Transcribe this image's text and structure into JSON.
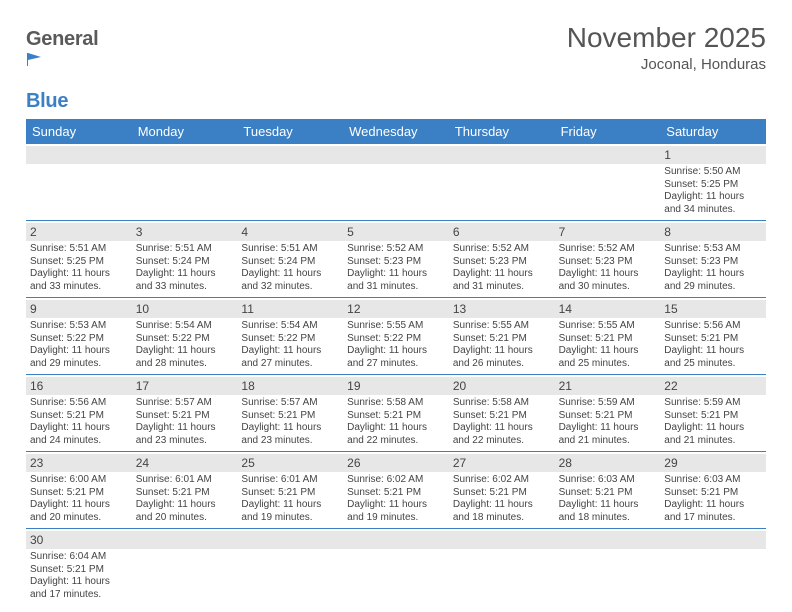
{
  "logo": {
    "textGray": "General",
    "textBlue": "Blue"
  },
  "title": "November 2025",
  "subtitle": "Joconal, Honduras",
  "headerColor": "#3b7fc4",
  "daynumBg": "#e7e7e7",
  "dow": [
    "Sunday",
    "Monday",
    "Tuesday",
    "Wednesday",
    "Thursday",
    "Friday",
    "Saturday"
  ],
  "weeks": [
    [
      {
        "n": "",
        "l": []
      },
      {
        "n": "",
        "l": []
      },
      {
        "n": "",
        "l": []
      },
      {
        "n": "",
        "l": []
      },
      {
        "n": "",
        "l": []
      },
      {
        "n": "",
        "l": []
      },
      {
        "n": "1",
        "l": [
          "Sunrise: 5:50 AM",
          "Sunset: 5:25 PM",
          "Daylight: 11 hours",
          "and 34 minutes."
        ]
      }
    ],
    [
      {
        "n": "2",
        "l": [
          "Sunrise: 5:51 AM",
          "Sunset: 5:25 PM",
          "Daylight: 11 hours",
          "and 33 minutes."
        ]
      },
      {
        "n": "3",
        "l": [
          "Sunrise: 5:51 AM",
          "Sunset: 5:24 PM",
          "Daylight: 11 hours",
          "and 33 minutes."
        ]
      },
      {
        "n": "4",
        "l": [
          "Sunrise: 5:51 AM",
          "Sunset: 5:24 PM",
          "Daylight: 11 hours",
          "and 32 minutes."
        ]
      },
      {
        "n": "5",
        "l": [
          "Sunrise: 5:52 AM",
          "Sunset: 5:23 PM",
          "Daylight: 11 hours",
          "and 31 minutes."
        ]
      },
      {
        "n": "6",
        "l": [
          "Sunrise: 5:52 AM",
          "Sunset: 5:23 PM",
          "Daylight: 11 hours",
          "and 31 minutes."
        ]
      },
      {
        "n": "7",
        "l": [
          "Sunrise: 5:52 AM",
          "Sunset: 5:23 PM",
          "Daylight: 11 hours",
          "and 30 minutes."
        ]
      },
      {
        "n": "8",
        "l": [
          "Sunrise: 5:53 AM",
          "Sunset: 5:23 PM",
          "Daylight: 11 hours",
          "and 29 minutes."
        ]
      }
    ],
    [
      {
        "n": "9",
        "l": [
          "Sunrise: 5:53 AM",
          "Sunset: 5:22 PM",
          "Daylight: 11 hours",
          "and 29 minutes."
        ]
      },
      {
        "n": "10",
        "l": [
          "Sunrise: 5:54 AM",
          "Sunset: 5:22 PM",
          "Daylight: 11 hours",
          "and 28 minutes."
        ]
      },
      {
        "n": "11",
        "l": [
          "Sunrise: 5:54 AM",
          "Sunset: 5:22 PM",
          "Daylight: 11 hours",
          "and 27 minutes."
        ]
      },
      {
        "n": "12",
        "l": [
          "Sunrise: 5:55 AM",
          "Sunset: 5:22 PM",
          "Daylight: 11 hours",
          "and 27 minutes."
        ]
      },
      {
        "n": "13",
        "l": [
          "Sunrise: 5:55 AM",
          "Sunset: 5:21 PM",
          "Daylight: 11 hours",
          "and 26 minutes."
        ]
      },
      {
        "n": "14",
        "l": [
          "Sunrise: 5:55 AM",
          "Sunset: 5:21 PM",
          "Daylight: 11 hours",
          "and 25 minutes."
        ]
      },
      {
        "n": "15",
        "l": [
          "Sunrise: 5:56 AM",
          "Sunset: 5:21 PM",
          "Daylight: 11 hours",
          "and 25 minutes."
        ]
      }
    ],
    [
      {
        "n": "16",
        "l": [
          "Sunrise: 5:56 AM",
          "Sunset: 5:21 PM",
          "Daylight: 11 hours",
          "and 24 minutes."
        ]
      },
      {
        "n": "17",
        "l": [
          "Sunrise: 5:57 AM",
          "Sunset: 5:21 PM",
          "Daylight: 11 hours",
          "and 23 minutes."
        ]
      },
      {
        "n": "18",
        "l": [
          "Sunrise: 5:57 AM",
          "Sunset: 5:21 PM",
          "Daylight: 11 hours",
          "and 23 minutes."
        ]
      },
      {
        "n": "19",
        "l": [
          "Sunrise: 5:58 AM",
          "Sunset: 5:21 PM",
          "Daylight: 11 hours",
          "and 22 minutes."
        ]
      },
      {
        "n": "20",
        "l": [
          "Sunrise: 5:58 AM",
          "Sunset: 5:21 PM",
          "Daylight: 11 hours",
          "and 22 minutes."
        ]
      },
      {
        "n": "21",
        "l": [
          "Sunrise: 5:59 AM",
          "Sunset: 5:21 PM",
          "Daylight: 11 hours",
          "and 21 minutes."
        ]
      },
      {
        "n": "22",
        "l": [
          "Sunrise: 5:59 AM",
          "Sunset: 5:21 PM",
          "Daylight: 11 hours",
          "and 21 minutes."
        ]
      }
    ],
    [
      {
        "n": "23",
        "l": [
          "Sunrise: 6:00 AM",
          "Sunset: 5:21 PM",
          "Daylight: 11 hours",
          "and 20 minutes."
        ]
      },
      {
        "n": "24",
        "l": [
          "Sunrise: 6:01 AM",
          "Sunset: 5:21 PM",
          "Daylight: 11 hours",
          "and 20 minutes."
        ]
      },
      {
        "n": "25",
        "l": [
          "Sunrise: 6:01 AM",
          "Sunset: 5:21 PM",
          "Daylight: 11 hours",
          "and 19 minutes."
        ]
      },
      {
        "n": "26",
        "l": [
          "Sunrise: 6:02 AM",
          "Sunset: 5:21 PM",
          "Daylight: 11 hours",
          "and 19 minutes."
        ]
      },
      {
        "n": "27",
        "l": [
          "Sunrise: 6:02 AM",
          "Sunset: 5:21 PM",
          "Daylight: 11 hours",
          "and 18 minutes."
        ]
      },
      {
        "n": "28",
        "l": [
          "Sunrise: 6:03 AM",
          "Sunset: 5:21 PM",
          "Daylight: 11 hours",
          "and 18 minutes."
        ]
      },
      {
        "n": "29",
        "l": [
          "Sunrise: 6:03 AM",
          "Sunset: 5:21 PM",
          "Daylight: 11 hours",
          "and 17 minutes."
        ]
      }
    ],
    [
      {
        "n": "30",
        "l": [
          "Sunrise: 6:04 AM",
          "Sunset: 5:21 PM",
          "Daylight: 11 hours",
          "and 17 minutes."
        ]
      },
      {
        "n": "",
        "l": []
      },
      {
        "n": "",
        "l": []
      },
      {
        "n": "",
        "l": []
      },
      {
        "n": "",
        "l": []
      },
      {
        "n": "",
        "l": []
      },
      {
        "n": "",
        "l": []
      }
    ]
  ]
}
